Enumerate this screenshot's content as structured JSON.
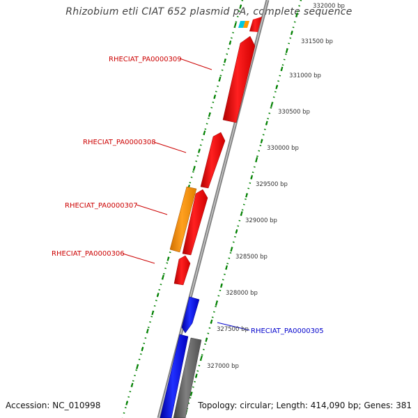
{
  "title": "Rhizobium etli CIAT 652 plasmid pA, complete sequence",
  "footer": {
    "accession": "Accession: NC_010998",
    "summary": "Topology: circular; Length: 414,090 bp; Genes: 381"
  },
  "colors": {
    "forward_cds": "#ff0000",
    "reverse_cds": "#0000ff",
    "other_gene": "#ff9900",
    "gray_feature": "#666666",
    "small_cyan": "#00c8e0",
    "backbone": "#999999",
    "ticks": "#008000",
    "label_red": "#cc0000",
    "label_blue": "#0000cc"
  },
  "scale_labels": [
    "327000 bp",
    "327500 bp",
    "328000 bp",
    "328500 bp",
    "329000 bp",
    "329500 bp",
    "330000 bp",
    "330500 bp",
    "331000 bp",
    "331500 bp",
    "332000 bp"
  ],
  "gene_labels": [
    {
      "name": "RHECIAT_PA0000309",
      "color": "red"
    },
    {
      "name": "RHECIAT_PA0000308",
      "color": "red"
    },
    {
      "name": "RHECIAT_PA0000307",
      "color": "red"
    },
    {
      "name": "RHECIAT_PA0000306",
      "color": "red"
    },
    {
      "name": "RHECIAT_PA0000305",
      "color": "blue"
    }
  ]
}
